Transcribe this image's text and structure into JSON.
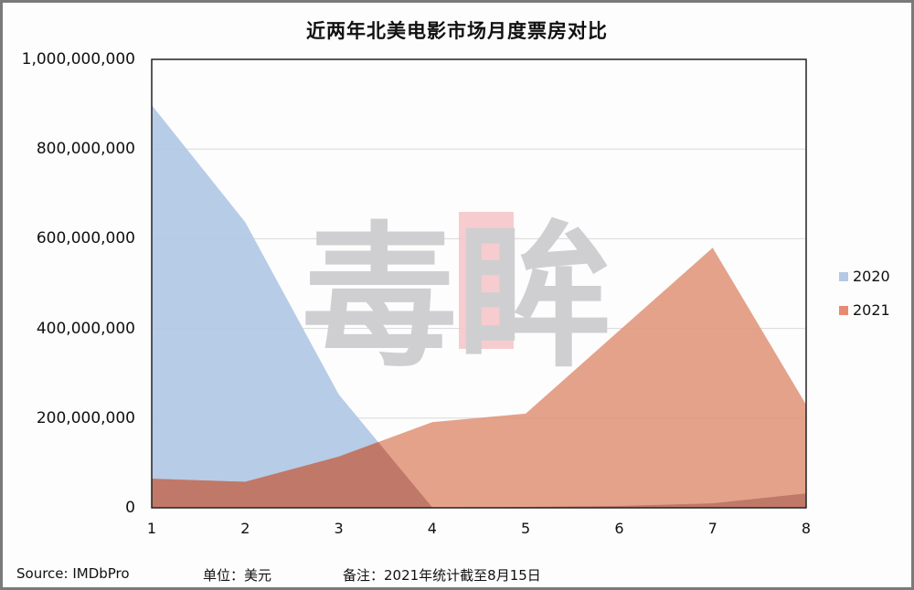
{
  "chart_data": {
    "type": "area",
    "title": "近两年北美电影市场月度票房对比",
    "xlabel": "",
    "ylabel": "",
    "categories": [
      "1",
      "2",
      "3",
      "4",
      "5",
      "6",
      "7",
      "8"
    ],
    "series": [
      {
        "name": "2020",
        "color": "#b3c9e5",
        "values": [
          898000000,
          637000000,
          253000000,
          1000000,
          2000000,
          4000000,
          10000000,
          32000000
        ]
      },
      {
        "name": "2021",
        "color": "#e0957a",
        "values": [
          65000000,
          58000000,
          114000000,
          191000000,
          210000000,
          395000000,
          580000000,
          230000000
        ]
      }
    ],
    "ylim": [
      0,
      1000000000
    ],
    "yticks": [
      "1,000,000,000",
      "800,000,000",
      "600,000,000",
      "400,000,000",
      "200,000,000",
      "0"
    ],
    "grid": true,
    "legend_position": "right"
  },
  "watermark": {
    "char1": "毒",
    "char2": "眸"
  },
  "footer": {
    "source": "Source: IMDbPro",
    "unit": "单位：美元",
    "note": "备注：2021年统计截至8月15日"
  },
  "colors": {
    "overlap": "#c07868",
    "grid": "#d9d9d9",
    "axis": "#222222"
  }
}
